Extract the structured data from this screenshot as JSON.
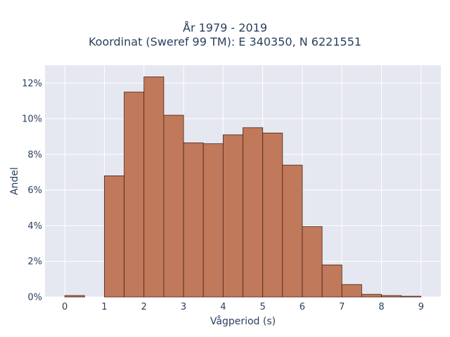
{
  "chart_data": {
    "type": "bar",
    "title_line1": "År 1979 - 2019",
    "title_line2": "Koordinat (Sweref 99 TM): E 340350, N 6221551",
    "xlabel": "Vågperiod (s)",
    "ylabel": "Andel",
    "bin_width": 0.5,
    "bin_starts": [
      0,
      0.5,
      1,
      1.5,
      2,
      2.5,
      3,
      3.5,
      4,
      4.5,
      5,
      5.5,
      6,
      6.5,
      7,
      7.5,
      8,
      8.5
    ],
    "values": [
      0.08,
      0,
      6.8,
      11.5,
      12.35,
      10.2,
      8.65,
      8.6,
      9.1,
      9.5,
      9.2,
      7.4,
      3.95,
      1.8,
      0.7,
      0.15,
      0.08,
      0.04
    ],
    "xlim": [
      -0.5,
      9.5
    ],
    "ylim": [
      0,
      13
    ],
    "x_ticks": [
      0,
      1,
      2,
      3,
      4,
      5,
      6,
      7,
      8,
      9
    ],
    "x_tick_labels": [
      "0",
      "1",
      "2",
      "3",
      "4",
      "5",
      "6",
      "7",
      "8",
      "9"
    ],
    "y_ticks": [
      0,
      2,
      4,
      6,
      8,
      10,
      12
    ],
    "y_tick_labels": [
      "0%",
      "2%",
      "4%",
      "6%",
      "8%",
      "10%",
      "12%"
    ],
    "grid": true,
    "colors": {
      "bar_fill": "#c0795a",
      "bar_stroke": "#4a2418",
      "plot_bg": "#e5e8f1",
      "grid": "#ffffff",
      "text": "#2a3f5f"
    }
  }
}
